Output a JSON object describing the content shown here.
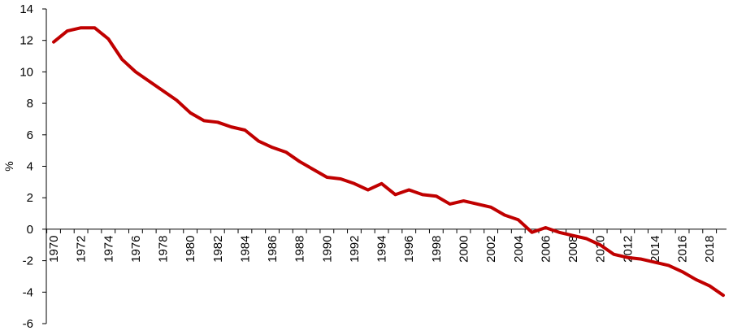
{
  "chart_data": {
    "type": "line",
    "title": "",
    "xlabel": "",
    "ylabel": "%",
    "ylim": [
      -6,
      14
    ],
    "yticks": [
      -6,
      -4,
      -2,
      0,
      2,
      4,
      6,
      8,
      10,
      12,
      14
    ],
    "xlim": [
      1970,
      2019
    ],
    "xticks": [
      1970,
      1972,
      1974,
      1976,
      1978,
      1980,
      1982,
      1984,
      1986,
      1988,
      1990,
      1992,
      1994,
      1996,
      1998,
      2000,
      2002,
      2004,
      2006,
      2008,
      2010,
      2012,
      2014,
      2016,
      2018
    ],
    "grid": false,
    "legend": "none",
    "series": [
      {
        "color": "#c00000",
        "x": [
          1970,
          1971,
          1972,
          1973,
          1974,
          1975,
          1976,
          1977,
          1978,
          1979,
          1980,
          1981,
          1982,
          1983,
          1984,
          1985,
          1986,
          1987,
          1988,
          1989,
          1990,
          1991,
          1992,
          1993,
          1994,
          1995,
          1996,
          1997,
          1998,
          1999,
          2000,
          2001,
          2002,
          2003,
          2004,
          2005,
          2006,
          2007,
          2008,
          2009,
          2010,
          2011,
          2012,
          2013,
          2014,
          2015,
          2016,
          2017,
          2018,
          2019
        ],
        "values": [
          11.9,
          12.6,
          12.8,
          12.8,
          12.1,
          10.8,
          10.0,
          9.4,
          8.8,
          8.2,
          7.4,
          6.9,
          6.8,
          6.5,
          6.3,
          5.6,
          5.2,
          4.9,
          4.3,
          3.8,
          3.3,
          3.2,
          2.9,
          2.5,
          2.9,
          2.2,
          2.5,
          2.2,
          2.1,
          1.6,
          1.8,
          1.6,
          1.4,
          0.9,
          0.6,
          -0.2,
          0.1,
          -0.2,
          -0.4,
          -0.6,
          -1.0,
          -1.6,
          -1.8,
          -1.9,
          -2.1,
          -2.3,
          -2.7,
          -3.2,
          -3.6,
          -4.2
        ]
      }
    ]
  },
  "colors": {
    "line": "#c00000",
    "axis": "#000000",
    "background": "#ffffff"
  }
}
